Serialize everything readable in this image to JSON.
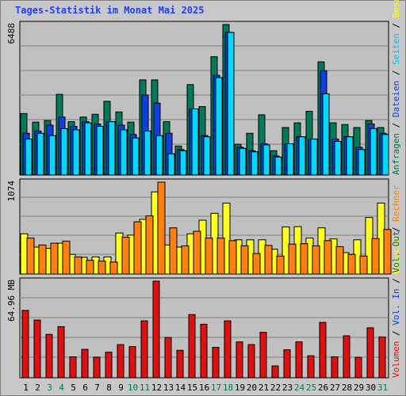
{
  "title": "Tages-Statistik im Monat Mai 2025",
  "chart_data": [
    {
      "type": "bar",
      "panel": "top",
      "ytick_label": "6488",
      "ylim": [
        0,
        6488
      ],
      "categories": [
        "1",
        "2",
        "3",
        "4",
        "5",
        "6",
        "7",
        "8",
        "9",
        "10",
        "11",
        "12",
        "13",
        "14",
        "15",
        "16",
        "17",
        "18",
        "19",
        "20",
        "21",
        "22",
        "23",
        "24",
        "25",
        "26",
        "27",
        "28",
        "29",
        "30",
        "31"
      ],
      "weekend_days": [
        "3",
        "4",
        "10",
        "11",
        "17",
        "18",
        "24",
        "25",
        "31"
      ],
      "side_label_parts": [
        {
          "text": "Anfragen",
          "color": "#006f4f"
        },
        {
          "text": " / ",
          "color": "#000000"
        },
        {
          "text": "Dateien",
          "color": "#1040e0"
        },
        {
          "text": " / ",
          "color": "#000000"
        },
        {
          "text": "Seiten",
          "color": "#00c8e8"
        },
        {
          "text": " / ",
          "color": "#000000"
        },
        {
          "text": "Besuche",
          "color": "#ffff00"
        }
      ],
      "series": [
        {
          "name": "Anfragen",
          "color": "#007a5a",
          "values": [
            2650,
            2280,
            2350,
            3480,
            2300,
            2500,
            2620,
            3180,
            2720,
            2280,
            4100,
            4100,
            2300,
            1250,
            3900,
            2950,
            5100,
            6488,
            1330,
            1800,
            2600,
            1050,
            2050,
            2250,
            2750,
            4880,
            2250,
            2180,
            2050,
            2350,
            2050
          ]
        },
        {
          "name": "Dateien",
          "color": "#1040e0",
          "values": [
            1800,
            1900,
            2150,
            2500,
            2100,
            2300,
            2200,
            2300,
            2150,
            1750,
            3450,
            3100,
            1800,
            1100,
            2850,
            1700,
            4300,
            6150,
            1200,
            1050,
            1350,
            820,
            1350,
            1650,
            1550,
            4500,
            1550,
            1650,
            1200,
            2200,
            1800
          ]
        },
        {
          "name": "Seiten",
          "color": "#00d8ff",
          "values": [
            1550,
            1800,
            1700,
            2000,
            1950,
            2250,
            2100,
            2300,
            1950,
            1600,
            1900,
            1700,
            920,
            1050,
            2850,
            1650,
            4200,
            6150,
            1150,
            1000,
            1300,
            780,
            1350,
            1650,
            1550,
            3500,
            1450,
            1650,
            1100,
            2000,
            1750
          ]
        }
      ]
    },
    {
      "type": "bar",
      "panel": "middle",
      "ytick_label": "1074",
      "ylim": [
        0,
        1074
      ],
      "categories": [
        "1",
        "2",
        "3",
        "4",
        "5",
        "6",
        "7",
        "8",
        "9",
        "10",
        "11",
        "12",
        "13",
        "14",
        "15",
        "16",
        "17",
        "18",
        "19",
        "20",
        "21",
        "22",
        "23",
        "24",
        "25",
        "26",
        "27",
        "28",
        "29",
        "30",
        "31"
      ],
      "side_label_parts": [
        {
          "text": "Besuche",
          "color": "#ffff00"
        },
        {
          "text": " / ",
          "color": "#000000"
        },
        {
          "text": "Rechner",
          "color": "#ff8000"
        }
      ],
      "series": [
        {
          "name": "Besuche",
          "color": "#ffff20",
          "values": [
            470,
            315,
            300,
            360,
            230,
            195,
            200,
            200,
            480,
            455,
            640,
            960,
            340,
            315,
            470,
            630,
            710,
            830,
            400,
            400,
            400,
            290,
            550,
            555,
            420,
            540,
            410,
            250,
            400,
            660,
            830
          ]
        },
        {
          "name": "Rechner",
          "color": "#ff8010",
          "values": [
            420,
            340,
            360,
            385,
            200,
            160,
            150,
            140,
            430,
            610,
            680,
            1074,
            540,
            330,
            500,
            420,
            420,
            390,
            330,
            240,
            335,
            210,
            350,
            355,
            330,
            390,
            320,
            230,
            210,
            415,
            520
          ]
        }
      ]
    },
    {
      "type": "bar",
      "panel": "bottom",
      "ytick_label": "64.96 MB",
      "ylim": [
        0,
        64.96
      ],
      "categories": [
        "1",
        "2",
        "3",
        "4",
        "5",
        "6",
        "7",
        "8",
        "9",
        "10",
        "11",
        "12",
        "13",
        "14",
        "15",
        "16",
        "17",
        "18",
        "19",
        "20",
        "21",
        "22",
        "23",
        "24",
        "25",
        "26",
        "27",
        "28",
        "29",
        "30",
        "31"
      ],
      "side_label_parts": [
        {
          "text": "Volumen",
          "color": "#e01010"
        },
        {
          "text": " / ",
          "color": "#000000"
        },
        {
          "text": "Vol. In",
          "color": "#1040e0"
        },
        {
          "text": " / ",
          "color": "#000000"
        },
        {
          "text": "Vol. Out",
          "color": "#006f4f"
        }
      ],
      "series": [
        {
          "name": "Volumen",
          "color": "#e01010",
          "values": [
            45.3,
            38.8,
            29.2,
            34.4,
            14.1,
            19.1,
            13.9,
            17.2,
            22.3,
            21.0,
            38.3,
            64.96,
            27.1,
            18.5,
            42.5,
            36.0,
            20.5,
            38.3,
            24.1,
            22.3,
            30.6,
            8.0,
            18.8,
            24.2,
            14.8,
            37.2,
            14.1,
            28.2,
            13.8,
            33.6,
            27.5
          ]
        }
      ]
    }
  ]
}
